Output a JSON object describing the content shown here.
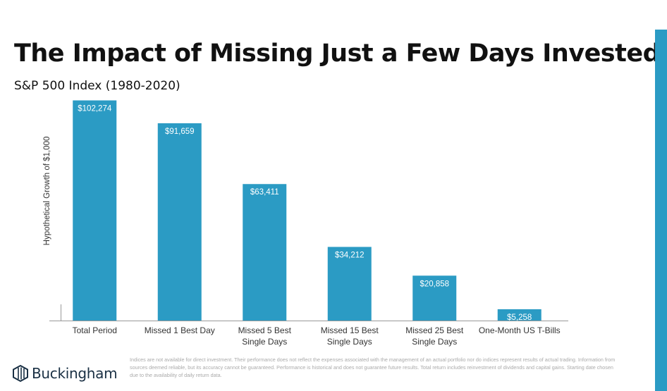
{
  "title": "The Impact of Missing Just a Few Days Invested…",
  "subtitle": "S&P 500 Index (1980-2020)",
  "footnote": "Indices are not available for direct investment. Their performance does not reflect the expenses associated with the management of an actual portfolio nor do indices represent results of actual trading. Information from sources deemed reliable, but its accuracy cannot be guaranteed. Performance is historical and does not guarantee future results. Total return includes reinvestment of dividends and capital gains. Starting date chosen due to the availability of daily return data.",
  "brand": {
    "name": "Buckingham",
    "logo_icon": "hexagon-stripes-logo-icon"
  },
  "colors": {
    "bar": "#2b9bc4",
    "accent_stripe": "#2b9bc4",
    "axis": "#999999"
  },
  "chart_data": {
    "type": "bar",
    "ylabel": "Hypothetical Growth of $1,000",
    "xlabel": "",
    "ylim": [
      0,
      105000
    ],
    "grid": false,
    "categories": [
      [
        "Total Period"
      ],
      [
        "Missed 1 Best Day"
      ],
      [
        "Missed 5 Best",
        "Single Days"
      ],
      [
        "Missed 15 Best",
        "Single Days"
      ],
      [
        "Missed 25 Best",
        "Single Days"
      ],
      [
        "One-Month US T-Bills"
      ]
    ],
    "values": [
      102274,
      91659,
      63411,
      34212,
      20858,
      5258
    ],
    "data_labels": [
      "$102,274",
      "$91,659",
      "$63,411",
      "$34,212",
      "$20,858",
      "$5,258"
    ]
  }
}
